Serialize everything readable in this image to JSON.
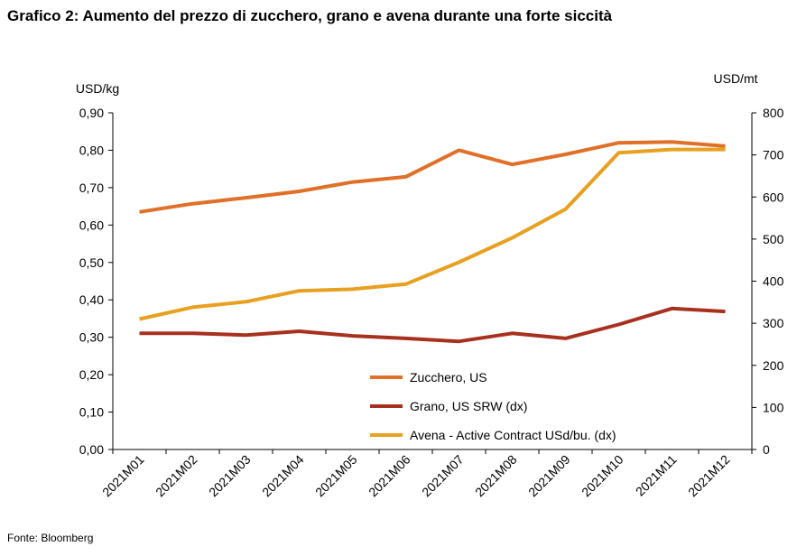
{
  "title": "Grafico 2: Aumento del prezzo di zucchero, grano e avena durante una forte siccità",
  "source": "Fonte: Bloomberg",
  "chart_data": {
    "type": "line",
    "categories": [
      "2021M01",
      "2021M02",
      "2021M03",
      "2021M04",
      "2021M05",
      "2021M06",
      "2021M07",
      "2021M08",
      "2021M09",
      "2021M10",
      "2021M11",
      "2021M12"
    ],
    "y_left": {
      "label": "USD/kg",
      "range": [
        0,
        0.9
      ],
      "ticks": [
        "0,00",
        "0,10",
        "0,20",
        "0,30",
        "0,40",
        "0,50",
        "0,60",
        "0,70",
        "0,80",
        "0,90"
      ]
    },
    "y_right": {
      "label": "USD/mt",
      "range": [
        0,
        800
      ],
      "ticks": [
        "0",
        "100",
        "200",
        "300",
        "400",
        "500",
        "600",
        "700",
        "800"
      ]
    },
    "grid": false,
    "legend_position": "bottom-center, inside plot",
    "series": [
      {
        "name": "Zucchero, US",
        "axis": "left",
        "color": "#E07028",
        "values": [
          0.635,
          0.657,
          0.673,
          0.69,
          0.715,
          0.729,
          0.8,
          0.762,
          0.789,
          0.82,
          0.822,
          0.811
        ]
      },
      {
        "name": "Grano, US SRW (dx)",
        "axis": "right",
        "color": "#A8301E",
        "values": [
          276,
          276,
          272,
          281,
          270,
          264,
          257,
          276,
          264,
          297,
          335,
          328
        ]
      },
      {
        "name": "Avena - Active Contract USd/bu. (dx)",
        "axis": "right",
        "color": "#E8A020",
        "values": [
          310,
          338,
          351,
          377,
          381,
          393,
          445,
          503,
          571,
          705,
          713,
          713
        ]
      }
    ]
  }
}
